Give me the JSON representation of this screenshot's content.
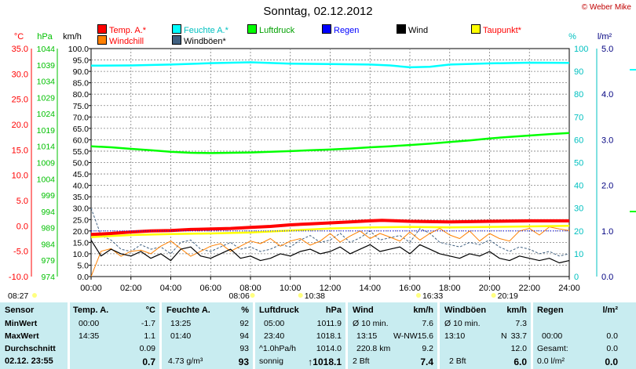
{
  "title": "Sonntag, 02.12.2012",
  "credit": "© Weber Mike",
  "colors": {
    "temp": "#ff0000",
    "feuchte": "#00ffff",
    "luftdruck": "#00ff00",
    "regen": "#0000ff",
    "wind": "#000000",
    "taupunkt": "#ffff00",
    "windchill": "#ff8000",
    "windboeen": "#406080",
    "axis_temp": "#ff0000",
    "axis_pressure": "#00c000",
    "axis_percent": "#00c0c0",
    "axis_rain": "#000080"
  },
  "legend": [
    {
      "label": "Temp. A.*",
      "color": "#ff0000",
      "label_color": "#ff0000"
    },
    {
      "label": "Feuchte A.*",
      "color": "#00ffff",
      "label_color": "#00c0c0"
    },
    {
      "label": "Luftdruck",
      "color": "#00ff00",
      "label_color": "#00a000"
    },
    {
      "label": "Regen",
      "color": "#0000ff",
      "label_color": "#0000ff"
    },
    {
      "label": "Wind",
      "color": "#000000",
      "label_color": "#000000"
    },
    {
      "label": "Taupunkt*",
      "color": "#ffff00",
      "label_color": "#ff0000"
    },
    {
      "label": "Windchill",
      "color": "#ff8000",
      "label_color": "#ff0000"
    },
    {
      "label": "Windböen*",
      "color": "#406080",
      "label_color": "#000000"
    }
  ],
  "chart_data": {
    "type": "line",
    "title": "Sonntag, 02.12.2012",
    "axes": {
      "temp": {
        "unit": "°C",
        "ticks": [
          "35.0",
          "30.0",
          "25.0",
          "20.0",
          "15.0",
          "10.0",
          "5.0",
          "0.0",
          "-5.0",
          "-10.0"
        ],
        "range": [
          -10,
          35
        ]
      },
      "pressure": {
        "unit": "hPa",
        "ticks": [
          "1044",
          "1039",
          "1034",
          "1029",
          "1024",
          "1019",
          "1014",
          "1009",
          "1004",
          "999",
          "994",
          "989",
          "984",
          "979",
          "974"
        ],
        "range": [
          974,
          1044
        ]
      },
      "wind": {
        "unit": "km/h",
        "ticks": [
          "100.0",
          "95.0",
          "90.0",
          "85.0",
          "80.0",
          "75.0",
          "70.0",
          "65.0",
          "60.0",
          "55.0",
          "50.0",
          "45.0",
          "40.0",
          "35.0",
          "30.0",
          "25.0",
          "20.0",
          "15.0",
          "10.0",
          "5.0",
          "0.0"
        ],
        "range": [
          0,
          100
        ]
      },
      "percent": {
        "unit": "%",
        "ticks": [
          "100",
          "90",
          "80",
          "70",
          "60",
          "50",
          "40",
          "30",
          "20",
          "10",
          "0"
        ],
        "range": [
          0,
          100
        ]
      },
      "rain": {
        "unit": "l/m²",
        "ticks": [
          "5.0",
          "4.0",
          "3.0",
          "2.0",
          "1.0",
          "0.0"
        ],
        "range": [
          0,
          5
        ]
      }
    },
    "x_ticks": [
      "00:00",
      "02:00",
      "04:00",
      "06:00",
      "08:00",
      "10:00",
      "12:00",
      "14:00",
      "16:00",
      "18:00",
      "20:00",
      "22:00",
      "24:00"
    ],
    "x_range": [
      0,
      24
    ],
    "grid": true,
    "sun_events": [
      {
        "label": "08:27",
        "hour": 8.45
      },
      {
        "label": "08:06",
        "hour": 8.1
      },
      {
        "label": "10:38",
        "hour": 10.63
      },
      {
        "label": "16:33",
        "hour": 16.55
      },
      {
        "label": "20:19",
        "hour": 20.32
      }
    ],
    "series": [
      {
        "name": "Feuchte A.*",
        "axis": "percent",
        "x": [
          0,
          2,
          4,
          6,
          8,
          10,
          12,
          14,
          15,
          16,
          17,
          18,
          20,
          22,
          24
        ],
        "values": [
          92.5,
          92.6,
          93.0,
          93.6,
          94.0,
          93.4,
          93.2,
          93.0,
          92.6,
          91.8,
          92.0,
          93.0,
          93.5,
          93.8,
          93.7
        ]
      },
      {
        "name": "Luftdruck",
        "axis": "pressure",
        "x": [
          0,
          1,
          2,
          3,
          4,
          5,
          6,
          7,
          8,
          9,
          10,
          11,
          12,
          13,
          14,
          15,
          16,
          17,
          18,
          19,
          20,
          21,
          22,
          23,
          24
        ],
        "values": [
          1014.0,
          1013.7,
          1013.2,
          1012.8,
          1012.3,
          1012.0,
          1011.9,
          1012.0,
          1012.1,
          1012.3,
          1012.5,
          1012.8,
          1013.0,
          1013.3,
          1013.7,
          1014.0,
          1014.4,
          1014.8,
          1015.3,
          1015.8,
          1016.4,
          1016.9,
          1017.3,
          1017.7,
          1018.1
        ]
      },
      {
        "name": "Temp. A.*",
        "axis": "temp",
        "x": [
          0,
          1,
          2,
          3,
          4,
          5,
          6,
          7,
          8,
          9,
          10,
          11,
          12,
          13,
          14,
          14.6,
          16,
          18,
          20,
          22,
          24
        ],
        "values": [
          -1.7,
          -1.5,
          -1.2,
          -1.0,
          -0.9,
          -0.7,
          -0.6,
          -0.5,
          -0.3,
          -0.1,
          0.2,
          0.4,
          0.6,
          0.8,
          1.0,
          1.1,
          0.9,
          0.8,
          0.9,
          1.0,
          1.0
        ]
      },
      {
        "name": "Taupunkt*",
        "axis": "temp",
        "x": [
          0,
          2,
          4,
          6,
          8,
          10,
          12,
          14,
          16,
          18,
          20,
          22,
          24
        ],
        "values": [
          -2.2,
          -1.8,
          -1.6,
          -1.5,
          -1.3,
          -0.9,
          -0.5,
          -0.3,
          -0.2,
          -0.3,
          -0.2,
          -0.1,
          0.0
        ]
      },
      {
        "name": "Wind",
        "axis": "wind",
        "x": [
          0,
          0.5,
          1,
          1.5,
          2,
          2.5,
          3,
          3.5,
          4,
          4.5,
          5,
          5.5,
          6,
          6.5,
          7,
          7.5,
          8,
          8.5,
          9,
          9.5,
          10,
          10.5,
          11,
          11.5,
          12,
          12.5,
          13,
          13.5,
          14,
          14.5,
          15,
          15.5,
          16,
          16.5,
          17,
          17.5,
          18,
          18.5,
          19,
          19.5,
          20,
          20.5,
          21,
          21.5,
          22,
          22.5,
          23,
          23.5,
          24
        ],
        "values": [
          16,
          9,
          12,
          10,
          9,
          11,
          8,
          10,
          7,
          12,
          13,
          9,
          8,
          10,
          12,
          8,
          9,
          7,
          8,
          10,
          9,
          11,
          12,
          10,
          11,
          13,
          10,
          12,
          14,
          11,
          12,
          13,
          10,
          14,
          12,
          10,
          9,
          8,
          10,
          9,
          11,
          8,
          7,
          9,
          8,
          7,
          8,
          6,
          7
        ]
      },
      {
        "name": "Windböen*",
        "axis": "wind",
        "x": [
          0,
          0.5,
          1,
          1.5,
          2,
          2.5,
          3,
          3.5,
          4,
          4.5,
          5,
          5.5,
          6,
          6.5,
          7,
          7.5,
          8,
          8.5,
          9,
          9.5,
          10,
          10.5,
          11,
          11.5,
          12,
          12.5,
          13,
          13.5,
          14,
          14.5,
          15,
          15.5,
          16,
          16.5,
          17,
          17.5,
          18,
          18.5,
          19,
          19.5,
          20,
          20.5,
          21,
          21.5,
          22,
          22.5,
          23,
          23.5,
          24
        ],
        "values": [
          30,
          18,
          16,
          12,
          11,
          14,
          12,
          13,
          10,
          15,
          16,
          12,
          11,
          13,
          15,
          12,
          13,
          11,
          12,
          14,
          13,
          16,
          18,
          15,
          16,
          19,
          15,
          17,
          20,
          16,
          17,
          18,
          15,
          21,
          19,
          15,
          14,
          13,
          15,
          14,
          16,
          13,
          11,
          13,
          12,
          10,
          11,
          9,
          10
        ]
      },
      {
        "name": "Windchill",
        "axis": "temp",
        "x": [
          0,
          0.5,
          1,
          1.5,
          2,
          2.5,
          3,
          3.5,
          4,
          4.5,
          5,
          5.5,
          6,
          6.5,
          7,
          7.5,
          8,
          8.5,
          9,
          9.5,
          10,
          10.5,
          11,
          11.5,
          12,
          12.5,
          13,
          13.5,
          14,
          14.5,
          15,
          15.5,
          16,
          16.5,
          17,
          17.5,
          18,
          18.5,
          19,
          19.5,
          20,
          20.5,
          21,
          21.5,
          22,
          22.5,
          23,
          23.5,
          24
        ],
        "values": [
          -10,
          -5,
          -4.5,
          -6,
          -5,
          -4.8,
          -5.5,
          -4,
          -3,
          -4.5,
          -6,
          -5,
          -4,
          -3.5,
          -5,
          -4,
          -3,
          -3.5,
          -2.5,
          -4,
          -3,
          -2.5,
          -3.8,
          -3,
          -1.5,
          -3.2,
          -2,
          -1,
          -2.5,
          -1.5,
          -2.2,
          -3,
          -1.2,
          -2.8,
          -1.5,
          -0.5,
          -1.8,
          -2.5,
          -1,
          -3,
          -1.5,
          -2.5,
          -3,
          -1,
          -0.5,
          -1.8,
          -0.2,
          -0.6,
          -0.9
        ]
      }
    ]
  },
  "table": {
    "sensor": {
      "header": "Sensor",
      "min": "MinWert",
      "max": "MaxWert",
      "avg": "Durchschnitt",
      "now": "02.12. 23:55"
    },
    "temp": {
      "header": "Temp. A.",
      "unit": "°C",
      "min_time": "00:00",
      "min_val": "-1.7",
      "max_time": "14:35",
      "max_val": "1.1",
      "avg_val": "0.09",
      "now_val": "0.7"
    },
    "feuchte": {
      "header": "Feuchte A.",
      "unit": "%",
      "min_time": "13:25",
      "min_val": "92",
      "max_time": "01:40",
      "max_val": "94",
      "avg_val": "93",
      "now_extra": "4.73 g/m³",
      "now_val": "93"
    },
    "luftdruck": {
      "header": "Luftdruck",
      "unit": "hPa",
      "min_time": "05:00",
      "min_val": "1011.9",
      "max_time": "23:40",
      "max_val": "1018.1",
      "avg_label": "^1.0hPa/h",
      "avg_val": "1014.0",
      "now_label": "sonnig",
      "now_val": "↑1018.1"
    },
    "wind": {
      "header": "Wind",
      "unit": "km/h",
      "min_label": "Ø 10 min.",
      "min_val": "7.6",
      "max_time": "13:15",
      "max_dir": "W-NW",
      "max_val": "15.6",
      "avg_label": "220.8 km",
      "avg_val": "9.2",
      "now_label": "2 Bft",
      "now_val": "7.4"
    },
    "windboeen": {
      "header": "Windböen",
      "unit": "km/h",
      "min_label": "Ø 10 min.",
      "min_val": "7.3",
      "max_time": "13:10",
      "max_dir": "N",
      "max_val": "33.7",
      "avg_val": "12.0",
      "now_label": "2 Bft",
      "now_val": "6.0"
    },
    "regen": {
      "header": "Regen",
      "unit": "l/m²",
      "max_time": "00:00",
      "max_val": "0.0",
      "avg_label": "Gesamt:",
      "avg_val": "0.0",
      "now_label": "0.0 l/m²",
      "now_val": "0.0"
    }
  }
}
